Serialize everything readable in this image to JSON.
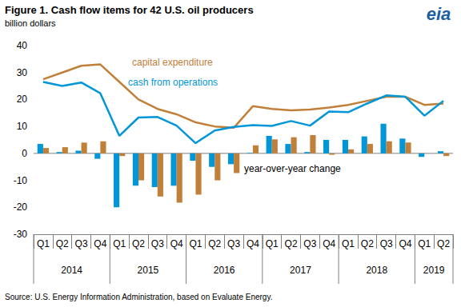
{
  "chart_data": {
    "type": "line",
    "title": "Figure 1. Cash flow items for 42 U.S. oil producers",
    "subtitle": "billion dollars",
    "source": "Source: U.S. Energy Information Administration, based on Evaluate Energy.",
    "logo": "eia",
    "categories": [
      "Q1",
      "Q2",
      "Q3",
      "Q4",
      "Q1",
      "Q2",
      "Q3",
      "Q4",
      "Q1",
      "Q2",
      "Q3",
      "Q4",
      "Q1",
      "Q2",
      "Q3",
      "Q4",
      "Q1",
      "Q2",
      "Q3",
      "Q4",
      "Q1",
      "Q2"
    ],
    "x_groups": [
      "2014",
      "2014",
      "2014",
      "2014",
      "2015",
      "2015",
      "2015",
      "2015",
      "2016",
      "2016",
      "2016",
      "2016",
      "2017",
      "2017",
      "2017",
      "2017",
      "2018",
      "2018",
      "2018",
      "2018",
      "2019",
      "2019"
    ],
    "series": [
      {
        "type": "bar",
        "color": "#0096d7",
        "values": [
          3.5,
          0.5,
          1,
          -2,
          -20,
          -12,
          -12.5,
          -12,
          -2.7,
          -5,
          -4,
          0.2,
          6.5,
          3.5,
          0.5,
          5,
          5,
          6.3,
          11,
          5.5,
          -1.3,
          0.8
        ]
      },
      {
        "type": "bar",
        "color": "#c0803a",
        "values": [
          2,
          2.3,
          4,
          4.5,
          -1,
          -10,
          -16,
          -18.3,
          -15.3,
          -10,
          -7.3,
          3,
          5.2,
          6,
          6.8,
          -0.5,
          1.5,
          3.5,
          4.5,
          4,
          0,
          -1
        ]
      },
      {
        "type": "line",
        "name": "capital expenditure",
        "color": "#c0803a",
        "values": [
          27.5,
          30,
          32.5,
          33,
          26.5,
          20,
          16.5,
          14.5,
          11.5,
          10,
          9.5,
          17.5,
          16.5,
          16,
          16.3,
          17,
          18,
          19.5,
          21,
          21,
          18,
          18.5
        ]
      },
      {
        "type": "line",
        "name": "cash from operations",
        "color": "#0096d7",
        "values": [
          26.5,
          25,
          26.3,
          22.3,
          6.5,
          13.3,
          13.5,
          10.3,
          3.8,
          8.5,
          9.8,
          10.5,
          10.2,
          12,
          10.3,
          15.5,
          15.3,
          18.5,
          21.5,
          21,
          14,
          19.5
        ]
      }
    ],
    "annotations": [
      {
        "text": "capital expenditure",
        "color": "#c0803a"
      },
      {
        "text": "cash from operations",
        "color": "#0096d7"
      },
      {
        "text": "year-over-year change",
        "color": "#000000"
      }
    ],
    "ylim": [
      -30,
      40
    ],
    "yticks": [
      -30,
      -20,
      -10,
      0,
      10,
      20,
      30,
      40
    ],
    "grid": false
  }
}
